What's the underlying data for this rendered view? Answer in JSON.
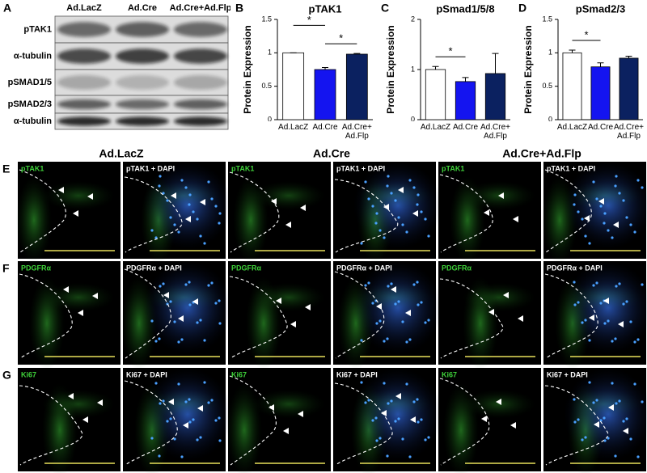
{
  "panel_labels": [
    "A",
    "B",
    "C",
    "D",
    "E",
    "F",
    "G"
  ],
  "blot": {
    "columns": [
      "Ad.LacZ",
      "Ad.Cre",
      "Ad.Cre+Ad.Flp"
    ],
    "rows": [
      "pTAK1",
      "α-tubulin",
      "pSMAD1/5",
      "pSMAD2/3",
      "α-tubulin"
    ]
  },
  "chart_data": [
    {
      "type": "bar",
      "title": "pTAK1",
      "y_label": "Protein Expression",
      "categories": [
        "Ad.LacZ",
        "Ad.Cre",
        "Ad.Cre+ Ad.Flp"
      ],
      "values": [
        1.0,
        0.75,
        0.98
      ],
      "errors": [
        0.0,
        0.03,
        0.01
      ],
      "colors": [
        "#ffffff",
        "#1414f0",
        "#0b2160"
      ],
      "ylim": [
        0,
        1.5
      ],
      "yticks": [
        0,
        0.5,
        1,
        1.5
      ],
      "significance": [
        {
          "label": "*",
          "pair": [
            0,
            1
          ]
        },
        {
          "label": "*",
          "pair": [
            1,
            2
          ]
        }
      ]
    },
    {
      "type": "bar",
      "title": "pSmad1/5/8",
      "y_label": "Protein Expression",
      "categories": [
        "Ad.LacZ",
        "Ad.Cre",
        "Ad.Cre+ Ad.Flp"
      ],
      "values": [
        1.0,
        0.76,
        0.92
      ],
      "errors": [
        0.06,
        0.08,
        0.4
      ],
      "colors": [
        "#ffffff",
        "#1414f0",
        "#0b2160"
      ],
      "ylim": [
        0,
        2
      ],
      "yticks": [
        0,
        1,
        2
      ],
      "significance": [
        {
          "label": "*",
          "pair": [
            0,
            1
          ]
        }
      ]
    },
    {
      "type": "bar",
      "title": "pSmad2/3",
      "y_label": "Protein Expression",
      "categories": [
        "Ad.LacZ",
        "Ad.Cre",
        "Ad.Cre+ Ad.Flp"
      ],
      "values": [
        1.0,
        0.79,
        0.92
      ],
      "errors": [
        0.04,
        0.06,
        0.03
      ],
      "colors": [
        "#ffffff",
        "#1414f0",
        "#0b2160"
      ],
      "ylim": [
        0,
        1.5
      ],
      "yticks": [
        0,
        0.5,
        1,
        1.5
      ],
      "significance": [
        {
          "label": "*",
          "pair": [
            0,
            1
          ]
        }
      ]
    }
  ],
  "micrographs": {
    "groups": [
      "Ad.LacZ",
      "Ad.Cre",
      "Ad.Cre+Ad.Flp"
    ],
    "rows": [
      {
        "labels": [
          "pTAK1",
          "pTAK1 + DAPI"
        ]
      },
      {
        "labels": [
          "PDGFRα",
          "PDGFRα + DAPI"
        ]
      },
      {
        "labels": [
          "Ki67",
          "Ki67 + DAPI"
        ]
      }
    ]
  }
}
